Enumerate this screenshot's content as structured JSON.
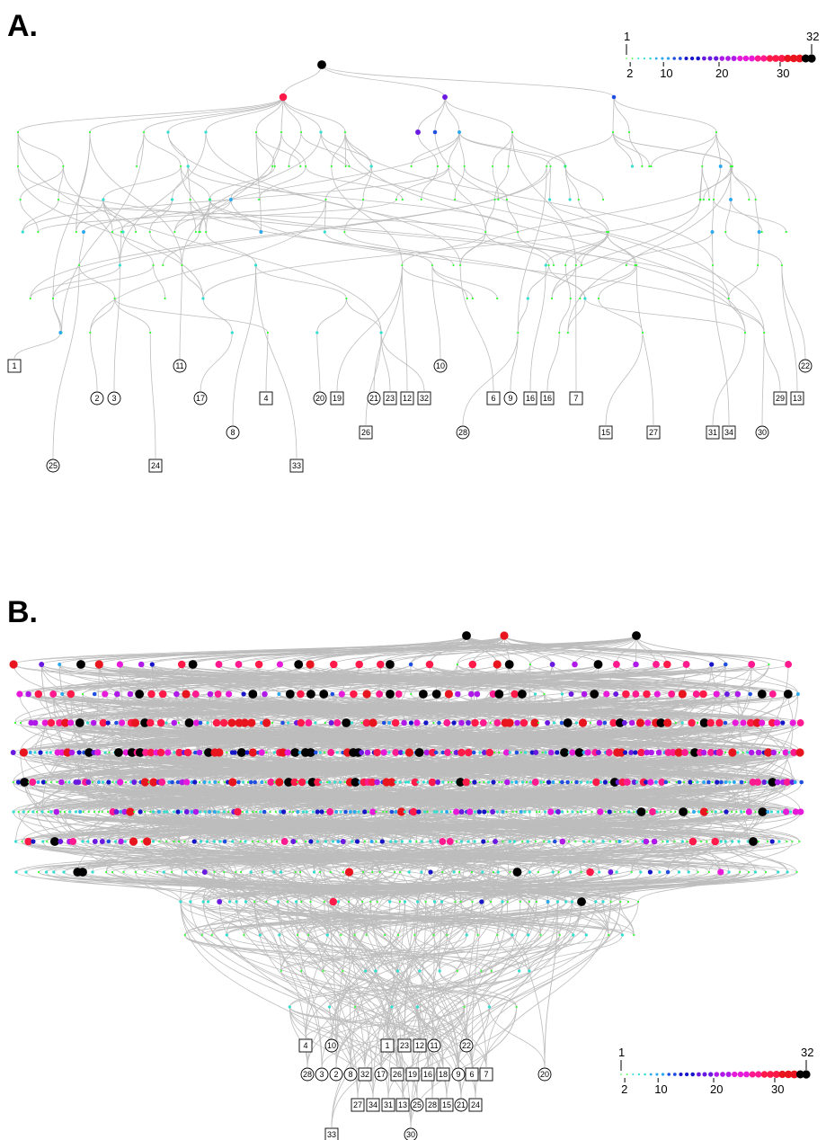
{
  "panels": [
    {
      "label": "A.",
      "legend": {
        "min_label": "1",
        "max_label": "32",
        "tick_labels": [
          "2",
          "10",
          "20",
          "30"
        ]
      },
      "leaves": [
        {
          "label": "1",
          "shape": "square"
        },
        {
          "label": "25",
          "shape": "circle"
        },
        {
          "label": "2",
          "shape": "circle"
        },
        {
          "label": "3",
          "shape": "circle"
        },
        {
          "label": "24",
          "shape": "square"
        },
        {
          "label": "11",
          "shape": "circle"
        },
        {
          "label": "17",
          "shape": "circle"
        },
        {
          "label": "8",
          "shape": "circle"
        },
        {
          "label": "4",
          "shape": "square"
        },
        {
          "label": "33",
          "shape": "square"
        },
        {
          "label": "20",
          "shape": "circle"
        },
        {
          "label": "19",
          "shape": "square"
        },
        {
          "label": "26",
          "shape": "square"
        },
        {
          "label": "21",
          "shape": "circle"
        },
        {
          "label": "23",
          "shape": "square"
        },
        {
          "label": "12",
          "shape": "square"
        },
        {
          "label": "32",
          "shape": "square"
        },
        {
          "label": "10",
          "shape": "circle"
        },
        {
          "label": "28",
          "shape": "circle"
        },
        {
          "label": "6",
          "shape": "square"
        },
        {
          "label": "9",
          "shape": "circle"
        },
        {
          "label": "16",
          "shape": "square"
        },
        {
          "label": "16",
          "shape": "square"
        },
        {
          "label": "7",
          "shape": "square"
        },
        {
          "label": "15",
          "shape": "square"
        },
        {
          "label": "27",
          "shape": "square"
        },
        {
          "label": "31",
          "shape": "square"
        },
        {
          "label": "34",
          "shape": "square"
        },
        {
          "label": "30",
          "shape": "circle"
        },
        {
          "label": "22",
          "shape": "circle"
        },
        {
          "label": "29",
          "shape": "square"
        },
        {
          "label": "13",
          "shape": "square"
        }
      ]
    },
    {
      "label": "B.",
      "legend": {
        "min_label": "1",
        "max_label": "32",
        "tick_labels": [
          "2",
          "10",
          "20",
          "30"
        ]
      },
      "leaves": [
        {
          "label": "4",
          "shape": "square"
        },
        {
          "label": "10",
          "shape": "circle"
        },
        {
          "label": "1",
          "shape": "square"
        },
        {
          "label": "23",
          "shape": "square"
        },
        {
          "label": "12",
          "shape": "square"
        },
        {
          "label": "11",
          "shape": "circle"
        },
        {
          "label": "22",
          "shape": "circle"
        },
        {
          "label": "28",
          "shape": "circle"
        },
        {
          "label": "3",
          "shape": "circle"
        },
        {
          "label": "2",
          "shape": "circle"
        },
        {
          "label": "8",
          "shape": "circle"
        },
        {
          "label": "32",
          "shape": "square"
        },
        {
          "label": "17",
          "shape": "circle"
        },
        {
          "label": "26",
          "shape": "square"
        },
        {
          "label": "19",
          "shape": "square"
        },
        {
          "label": "16",
          "shape": "square"
        },
        {
          "label": "18",
          "shape": "square"
        },
        {
          "label": "9",
          "shape": "circle"
        },
        {
          "label": "6",
          "shape": "square"
        },
        {
          "label": "7",
          "shape": "square"
        },
        {
          "label": "20",
          "shape": "circle"
        },
        {
          "label": "27",
          "shape": "square"
        },
        {
          "label": "34",
          "shape": "square"
        },
        {
          "label": "31",
          "shape": "square"
        },
        {
          "label": "13",
          "shape": "square"
        },
        {
          "label": "25",
          "shape": "circle"
        },
        {
          "label": "28",
          "shape": "square"
        },
        {
          "label": "15",
          "shape": "square"
        },
        {
          "label": "21",
          "shape": "circle"
        },
        {
          "label": "24",
          "shape": "square"
        },
        {
          "label": "33",
          "shape": "square"
        },
        {
          "label": "30",
          "shape": "circle"
        }
      ]
    }
  ],
  "colors": {
    "edge": "#bdbdbd",
    "scale": [
      "#33ff33",
      "#33e0d0",
      "#2aa8f0",
      "#1f4fe0",
      "#1616c8",
      "#6a1ae0",
      "#b01ae8",
      "#e61ad8",
      "#ff1a90",
      "#ff1a4a",
      "#e8141e",
      "#000000"
    ]
  }
}
